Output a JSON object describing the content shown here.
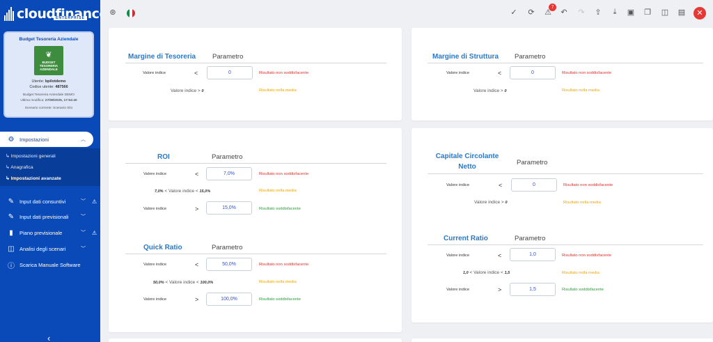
{
  "app": {
    "logo_text": "cloudfinance",
    "logo_sub": "ENTERPRISE"
  },
  "company": {
    "title": "Budget Tesoreria Aziendale",
    "image_text": "BUDGET TESORERIA AZIENDALE",
    "user_label": "Utente:",
    "user_value": "bpilotdemo",
    "code_label": "Codice utente:",
    "code_value": "487566",
    "project": "Budget Tesoreria Aziendale DEMO",
    "modified_label": "Ultima modifica:",
    "modified_value": "27/08/2025, 17:54:40",
    "scenario": "Scenario corrente: Scenario 001"
  },
  "nav": {
    "settings": "Impostazioni",
    "sub_general": "Impostazioni generali",
    "sub_registry": "Anagrafica",
    "sub_advanced": "Impostazioni avanzate",
    "actuals": "Input dati consuntivi",
    "forecasts": "Input dati previsionali",
    "plan": "Piano previsionale",
    "scenarios": "Analisi degli scenari",
    "manual": "Scarica Manuale Software"
  },
  "topbar": {
    "alerts_count": "7",
    "flag_colors": [
      "#009246",
      "#ffffff",
      "#ce2b37"
    ]
  },
  "common": {
    "param": "Parametro",
    "value_label": "Valore indice",
    "lt": "<",
    "gt": ">",
    "gt_mid": "Valore indice >",
    "lt_mid": "< Valore indice <",
    "bad": "Risultato non soddisfacente",
    "avg": "Risultato nella media",
    "good": "Risultato soddisfacente"
  },
  "margine_tesoreria": {
    "title": "Margine di Tesoreria",
    "input": "0",
    "mid_value": "0"
  },
  "margine_struttura": {
    "title": "Margine di Struttura",
    "input": "0",
    "mid_value": "0"
  },
  "roi": {
    "title": "ROI",
    "low": "7,0%",
    "mid_low": "7,0%",
    "mid_high": "15,0%",
    "high": "15,0%"
  },
  "quick_ratio": {
    "title": "Quick Ratio",
    "low": "50,0%",
    "mid_low": "50,0%",
    "mid_high": "100,0%",
    "high": "100,0%"
  },
  "ccn": {
    "title_line1": "Capitale Circolante",
    "title_line2": "Netto",
    "input": "0",
    "mid_value": "0"
  },
  "current_ratio": {
    "title": "Current Ratio",
    "low": "1,0",
    "mid_low": "1,0",
    "mid_high": "1,5",
    "high": "1,5"
  },
  "colors": {
    "sidebar": "#0a4ab8",
    "accent_title": "#2a78c8",
    "bad": "#e0302a",
    "avg": "#f0a500",
    "good": "#2a9a3a"
  }
}
